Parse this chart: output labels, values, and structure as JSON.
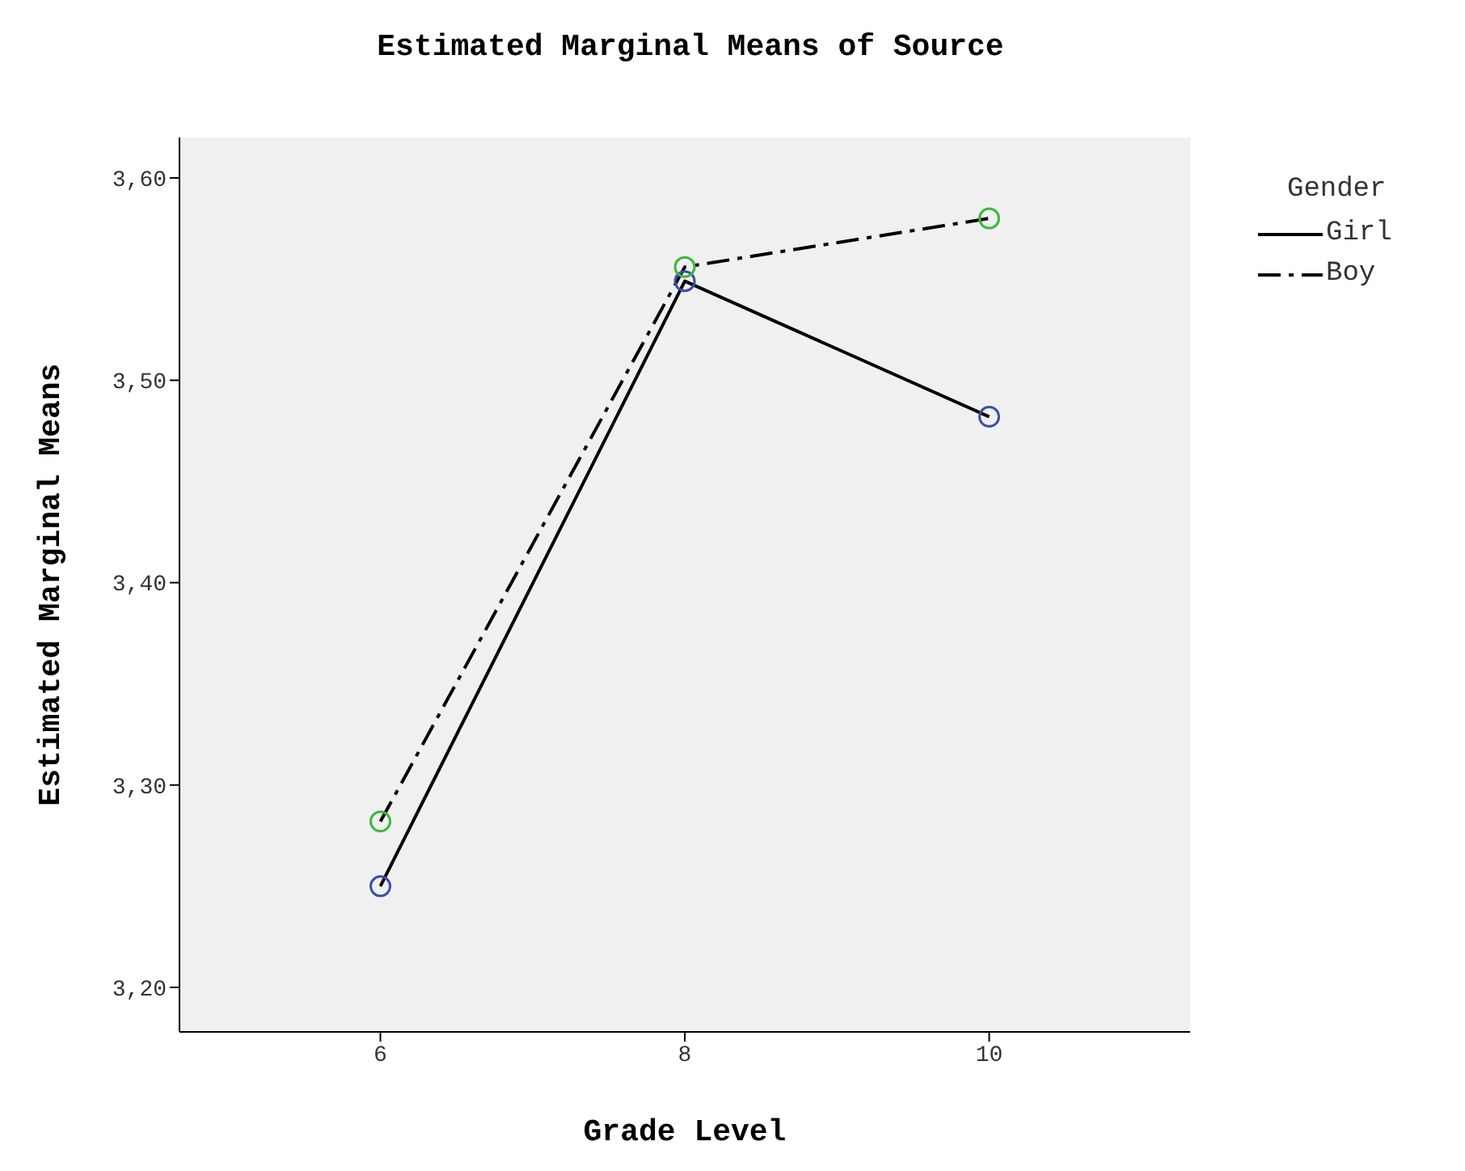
{
  "chart_data": {
    "type": "line",
    "title": "Estimated Marginal Means of Source",
    "xlabel": "Grade Level",
    "ylabel": "Estimated Marginal Means",
    "legend_title": "Gender",
    "legend": "top right",
    "grid": false,
    "marker": "circle",
    "x": [
      6,
      8,
      10
    ],
    "xlim": [
      4.68,
      11.32
    ],
    "xticks": [
      6,
      8,
      10
    ],
    "ylim": [
      3.178,
      3.62
    ],
    "yticks": [
      {
        "value": 3.2,
        "label": "3,20"
      },
      {
        "value": 3.3,
        "label": "3,30"
      },
      {
        "value": 3.4,
        "label": "3,40"
      },
      {
        "value": 3.5,
        "label": "3,50"
      },
      {
        "value": 3.6,
        "label": "3,60"
      }
    ],
    "series": [
      {
        "name": "Girl",
        "color": "#000000",
        "colors": [
          "#3a4fa8",
          "#3a4fa8",
          "#3a4fa8"
        ],
        "line_style": "solid",
        "values": [
          3.25,
          3.549,
          3.482
        ]
      },
      {
        "name": "Boy",
        "color": "#000000",
        "colors": [
          "#3cb83c",
          "#3cb83c",
          "#3cb83c"
        ],
        "line_style": "dashed",
        "values": [
          3.282,
          3.556,
          3.58
        ]
      }
    ]
  }
}
